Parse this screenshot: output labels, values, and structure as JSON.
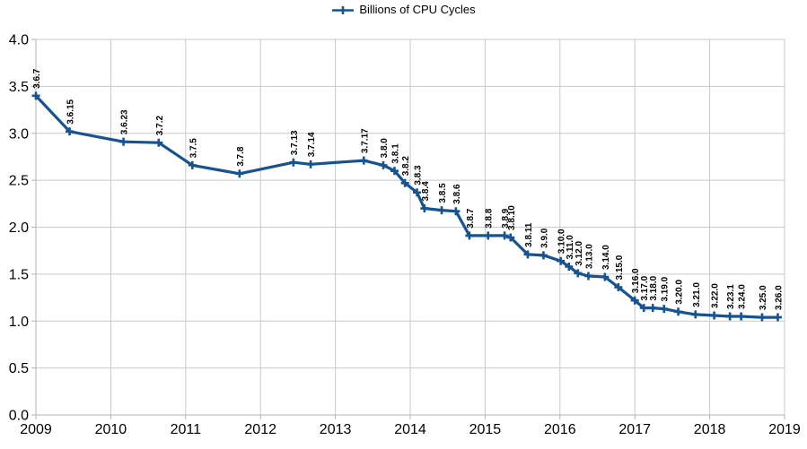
{
  "colors": {
    "series": "#175390",
    "grid": "#c9c9c9",
    "axis": "#b3b3b3",
    "text": "#000000",
    "background": "#ffffff"
  },
  "chart_data": {
    "type": "line",
    "title": "",
    "legend_label": "Billions of CPU Cycles",
    "legend_position": "top-center",
    "grid": true,
    "xlabel": "",
    "ylabel": "",
    "xlim": [
      2009,
      2019
    ],
    "ylim": [
      0.0,
      4.0
    ],
    "x_tick_labels": [
      "2009",
      "2010",
      "2011",
      "2012",
      "2013",
      "2014",
      "2015",
      "2016",
      "2017",
      "2018",
      "2019"
    ],
    "y_tick_labels": [
      "0.0",
      "0.5",
      "1.0",
      "1.5",
      "2.0",
      "2.5",
      "3.0",
      "3.5",
      "4.0"
    ],
    "y_tick_step": 0.5,
    "marker": "plus",
    "data_label_rotation_deg": 90,
    "series": [
      {
        "name": "Billions of CPU Cycles",
        "points": [
          {
            "label": "3.6.7",
            "x": 2009.0,
            "y": 3.4
          },
          {
            "label": "3.6.15",
            "x": 2009.45,
            "y": 3.02
          },
          {
            "label": "3.6.23",
            "x": 2010.17,
            "y": 2.91
          },
          {
            "label": "3.7.2",
            "x": 2010.64,
            "y": 2.9
          },
          {
            "label": "3.7.5",
            "x": 2011.09,
            "y": 2.66
          },
          {
            "label": "3.7.8",
            "x": 2011.72,
            "y": 2.57
          },
          {
            "label": "3.7.13",
            "x": 2012.44,
            "y": 2.69
          },
          {
            "label": "3.7.14",
            "x": 2012.67,
            "y": 2.67
          },
          {
            "label": "3.7.17",
            "x": 2013.38,
            "y": 2.71
          },
          {
            "label": "3.8.0",
            "x": 2013.64,
            "y": 2.66
          },
          {
            "label": "3.8.1",
            "x": 2013.79,
            "y": 2.6
          },
          {
            "label": "3.8.2",
            "x": 2013.93,
            "y": 2.47
          },
          {
            "label": "3.8.3",
            "x": 2014.09,
            "y": 2.37
          },
          {
            "label": "3.8.4",
            "x": 2014.19,
            "y": 2.2
          },
          {
            "label": "3.8.5",
            "x": 2014.42,
            "y": 2.18
          },
          {
            "label": "3.8.6",
            "x": 2014.61,
            "y": 2.17
          },
          {
            "label": "3.8.7",
            "x": 2014.79,
            "y": 1.91
          },
          {
            "label": "3.8.8",
            "x": 2015.04,
            "y": 1.91
          },
          {
            "label": "3.8.9",
            "x": 2015.26,
            "y": 1.91
          },
          {
            "label": "3.8.10",
            "x": 2015.34,
            "y": 1.89
          },
          {
            "label": "3.8.11",
            "x": 2015.57,
            "y": 1.71
          },
          {
            "label": "3.9.0",
            "x": 2015.78,
            "y": 1.7
          },
          {
            "label": "3.10.0",
            "x": 2016.01,
            "y": 1.64
          },
          {
            "label": "3.11.0",
            "x": 2016.12,
            "y": 1.58
          },
          {
            "label": "3.12.0",
            "x": 2016.24,
            "y": 1.51
          },
          {
            "label": "3.13.0",
            "x": 2016.38,
            "y": 1.48
          },
          {
            "label": "3.14.0",
            "x": 2016.6,
            "y": 1.47
          },
          {
            "label": "3.15.0",
            "x": 2016.78,
            "y": 1.36
          },
          {
            "label": "3.16.0",
            "x": 2017.0,
            "y": 1.22
          },
          {
            "label": "3.17.0",
            "x": 2017.12,
            "y": 1.14
          },
          {
            "label": "3.18.0",
            "x": 2017.24,
            "y": 1.14
          },
          {
            "label": "3.19.0",
            "x": 2017.39,
            "y": 1.13
          },
          {
            "label": "3.20.0",
            "x": 2017.58,
            "y": 1.1
          },
          {
            "label": "3.21.0",
            "x": 2017.81,
            "y": 1.07
          },
          {
            "label": "3.22.0",
            "x": 2018.06,
            "y": 1.06
          },
          {
            "label": "3.23.1",
            "x": 2018.27,
            "y": 1.05
          },
          {
            "label": "3.24.0",
            "x": 2018.42,
            "y": 1.05
          },
          {
            "label": "3.25.0",
            "x": 2018.7,
            "y": 1.04
          },
          {
            "label": "3.26.0",
            "x": 2018.91,
            "y": 1.04
          }
        ]
      }
    ]
  }
}
